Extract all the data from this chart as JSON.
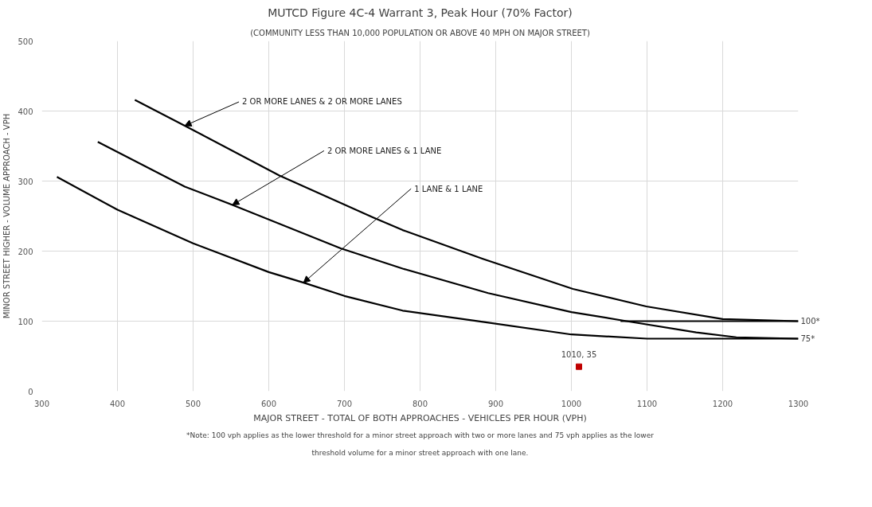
{
  "chart_data": {
    "type": "line",
    "title": "MUTCD Figure 4C-4 Warrant 3, Peak Hour (70% Factor)",
    "subtitle": "(COMMUNITY LESS THAN 10,000 POPULATION OR ABOVE 40 MPH ON MAJOR STREET)",
    "xlabel": "MAJOR STREET - TOTAL OF BOTH APPROACHES - VEHICLES PER HOUR (VPH)",
    "ylabel": "MINOR STREET HIGHER - VOLUME APPROACH - VPH",
    "series": [
      {
        "color": "#000000",
        "x": [
          423,
          489,
          614,
          738,
          777,
          883,
          1002,
          1099,
          1200,
          1300
        ],
        "values": [
          416,
          379,
          308,
          248,
          230,
          189,
          146,
          121,
          103,
          100
        ]
      },
      {
        "color": "#000000",
        "x": [
          374,
          489,
          552,
          695,
          777,
          890,
          1000,
          1073,
          1165,
          1218,
          1300
        ],
        "values": [
          356,
          292,
          266,
          204,
          175,
          140,
          113,
          100,
          84,
          77,
          75
        ]
      },
      {
        "color": "#000000",
        "x": [
          320,
          400,
          500,
          600,
          646,
          700,
          777,
          883,
          1000,
          1100,
          1200,
          1300
        ],
        "values": [
          306,
          259,
          211,
          170,
          155,
          136,
          115,
          99,
          81,
          75,
          75,
          75
        ]
      },
      {
        "color": "#000000",
        "x": [
          1065,
          1300
        ],
        "values": [
          100,
          100
        ]
      },
      {
        "type": "scatter",
        "color": "#c00000",
        "marker": "square",
        "x": [
          1010
        ],
        "values": [
          35
        ],
        "value_labels": [
          "1010, 35"
        ]
      }
    ],
    "annotations": [
      {
        "text": "2 OR MORE LANES & 2 OR MORE LANES",
        "x": 489,
        "y": 379
      },
      {
        "text": "2 OR MORE LANES & 1 LANE",
        "x": 552,
        "y": 266
      },
      {
        "text": "1 LANE & 1 LANE",
        "x": 646,
        "y": 155
      },
      {
        "text": "100*",
        "x": 1300,
        "y": 100
      },
      {
        "text": "75*",
        "x": 1300,
        "y": 75
      },
      "*Note: 100 vph applies as the lower threshold for a minor street approach with two or more lanes and 75 vph applies as the lower threshold volume for a minor street approach with one lane."
    ],
    "xlim": [
      300,
      1300
    ],
    "ylim": [
      0,
      500
    ],
    "xticks": [
      300,
      400,
      500,
      600,
      700,
      800,
      900,
      1000,
      1100,
      1200,
      1300
    ],
    "yticks": [
      0,
      100,
      200,
      300,
      400,
      500
    ],
    "grid": true,
    "marker": "none",
    "line_style": "solid"
  }
}
